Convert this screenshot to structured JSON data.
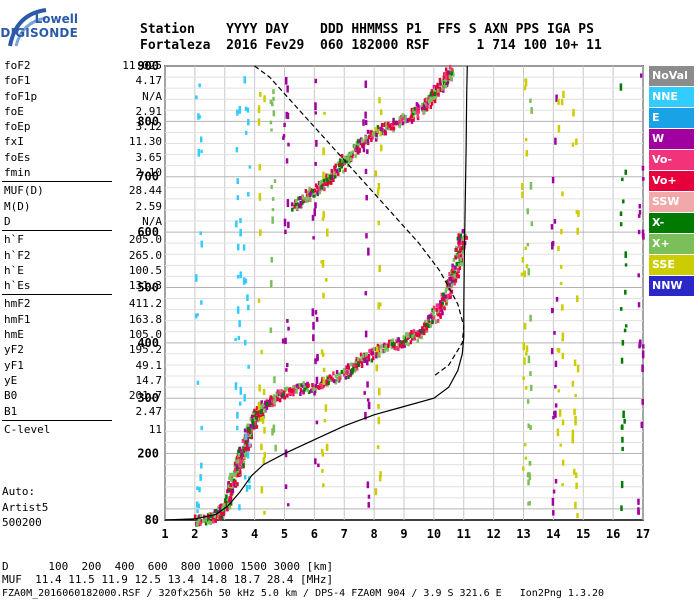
{
  "logo": {
    "top": "Lowell",
    "bottom": "DIGISONDE"
  },
  "header": {
    "line1": "Station    YYYY DAY    DDD HHMMSS P1  FFS S AXN PPS IGA PS",
    "line2": "Fortaleza  2016 Fev29  060 182000 RSF      1 714 100 10+ 11"
  },
  "params": [
    {
      "k": "foF2",
      "v": "11.025"
    },
    {
      "k": "foF1",
      "v": "4.17"
    },
    {
      "k": "foF1p",
      "v": "N/A"
    },
    {
      "k": "foE",
      "v": "2.91"
    },
    {
      "k": "foEp",
      "v": "3.12"
    },
    {
      "k": "fxI",
      "v": "11.30"
    },
    {
      "k": "foEs",
      "v": "3.65"
    },
    {
      "k": "fmin",
      "v": "2.10"
    },
    {
      "sep": true
    },
    {
      "k": "MUF(D)",
      "v": "28.44"
    },
    {
      "k": "M(D)",
      "v": "2.59"
    },
    {
      "k": "D",
      "v": "N/A"
    },
    {
      "sep": true
    },
    {
      "k": "h`F",
      "v": "205.0"
    },
    {
      "k": "h`F2",
      "v": "265.0"
    },
    {
      "k": "h`E",
      "v": "100.5"
    },
    {
      "k": "h`Es",
      "v": "131.3"
    },
    {
      "sep": true
    },
    {
      "k": "hmF2",
      "v": "411.2"
    },
    {
      "k": "hmF1",
      "v": "163.8"
    },
    {
      "k": "hmE",
      "v": "105.0"
    },
    {
      "k": "yF2",
      "v": "195.2"
    },
    {
      "k": "yF1",
      "v": "49.1"
    },
    {
      "k": "yE",
      "v": "14.7"
    },
    {
      "k": "B0",
      "v": "201.7"
    },
    {
      "k": "B1",
      "v": "2.47"
    },
    {
      "sep": true
    },
    {
      "k": "C-level",
      "v": "11"
    }
  ],
  "auto": {
    "l1": "Auto:",
    "l2": "Artist5",
    "l3": "500200"
  },
  "bottom": {
    "d_line": "D      100  200  400  600  800 1000 1500 3000 [km]",
    "muf_line": "MUF  11.4 11.5 11.9 12.5 13.4 14.8 18.7 28.4 [MHz]",
    "footer": "FZA0M_2016060182000.RSF / 320fx256h 50 kHz 5.0 km / DPS-4 FZA0M 904 / 3.9 S 321.6 E   Ion2Png 1.3.20"
  },
  "legend": [
    {
      "label": "NoVal",
      "color": "#8c8c8c"
    },
    {
      "label": "NNE",
      "color": "#33ccff"
    },
    {
      "label": "E",
      "color": "#19a2e6"
    },
    {
      "label": "W",
      "color": "#a000a0"
    },
    {
      "label": "Vo-",
      "color": "#f2337a"
    },
    {
      "label": "Vo+",
      "color": "#e6003c"
    },
    {
      "label": "SSW",
      "color": "#f0a8a8"
    },
    {
      "label": "X-",
      "color": "#007a00"
    },
    {
      "label": "X+",
      "color": "#7abf5a"
    },
    {
      "label": "SSE",
      "color": "#cccc00"
    },
    {
      "label": "NNW",
      "color": "#2a28c8"
    }
  ],
  "chart_data": {
    "type": "scatter",
    "title": "",
    "xlabel": "",
    "ylabel": "",
    "xlim": [
      1,
      17
    ],
    "ylim": [
      80,
      900
    ],
    "x_ticks": [
      1,
      2,
      3,
      4,
      5,
      6,
      7,
      8,
      9,
      10,
      11,
      12,
      13,
      14,
      15,
      16,
      17
    ],
    "y_ticks": [
      80,
      200,
      300,
      400,
      500,
      600,
      700,
      800,
      900
    ],
    "grid": true,
    "series": [
      {
        "style": "trace",
        "points": [
          [
            2.0,
            82
          ],
          [
            2.6,
            88
          ],
          [
            3.0,
            108
          ],
          [
            3.2,
            150
          ],
          [
            3.4,
            175
          ],
          [
            3.5,
            195
          ],
          [
            3.6,
            212
          ],
          [
            3.8,
            245
          ],
          [
            4.0,
            268
          ],
          [
            4.3,
            290
          ],
          [
            4.8,
            310
          ],
          [
            5.5,
            320
          ],
          [
            6.3,
            330
          ],
          [
            7.0,
            350
          ],
          [
            7.6,
            375
          ],
          [
            8.3,
            395
          ],
          [
            8.9,
            405
          ],
          [
            9.5,
            420
          ],
          [
            10.0,
            450
          ],
          [
            10.3,
            480
          ],
          [
            10.6,
            520
          ],
          [
            10.8,
            560
          ],
          [
            10.95,
            600
          ]
        ]
      },
      {
        "style": "trace",
        "points": [
          [
            5.3,
            650
          ],
          [
            5.8,
            670
          ],
          [
            6.3,
            690
          ],
          [
            6.8,
            720
          ],
          [
            7.3,
            750
          ],
          [
            7.8,
            775
          ],
          [
            8.5,
            795
          ],
          [
            9.3,
            815
          ],
          [
            9.8,
            840
          ],
          [
            10.1,
            860
          ],
          [
            10.4,
            880
          ],
          [
            10.5,
            895
          ]
        ]
      },
      {
        "style": "profile_solid",
        "points": [
          [
            1,
            80
          ],
          [
            2.0,
            82
          ],
          [
            2.7,
            90
          ],
          [
            3.1,
            105
          ],
          [
            3.5,
            130
          ],
          [
            3.9,
            160
          ],
          [
            4.3,
            180
          ],
          [
            5.0,
            200
          ],
          [
            6.0,
            225
          ],
          [
            7.0,
            250
          ],
          [
            8.0,
            270
          ],
          [
            9.0,
            285
          ],
          [
            10.0,
            300
          ],
          [
            10.5,
            320
          ],
          [
            10.8,
            350
          ],
          [
            10.95,
            380
          ],
          [
            11.0,
            411
          ],
          [
            11.0,
            460
          ],
          [
            11.02,
            550
          ],
          [
            11.05,
            650
          ],
          [
            11.08,
            750
          ],
          [
            11.1,
            850
          ],
          [
            11.12,
            900
          ]
        ]
      },
      {
        "style": "profile_dashed",
        "points": [
          [
            4.0,
            900
          ],
          [
            4.5,
            880
          ],
          [
            5.5,
            820
          ],
          [
            6.5,
            760
          ],
          [
            7.5,
            700
          ],
          [
            8.5,
            640
          ],
          [
            9.5,
            580
          ],
          [
            10.2,
            530
          ],
          [
            10.8,
            470
          ],
          [
            11.0,
            430
          ],
          [
            10.95,
            400
          ],
          [
            10.5,
            360
          ],
          [
            10.0,
            340
          ]
        ]
      }
    ]
  }
}
